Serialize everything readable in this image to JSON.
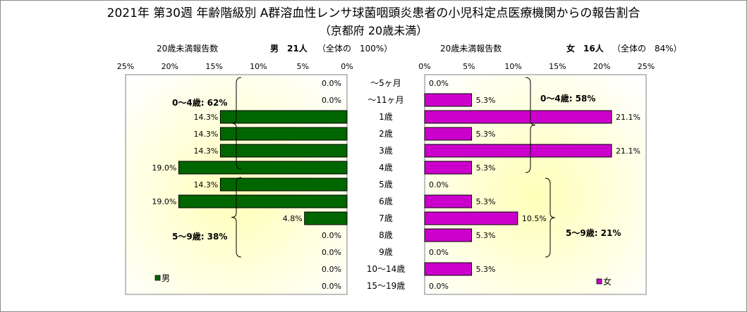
{
  "title": "2021年 第30週 年齢階級別 A群溶血性レンサ球菌咽頭炎患者の小児科定点医療機関からの報告割合",
  "subtitle": "（京都府 20歳未満）",
  "male_header": {
    "report_label": "20歳未満報告数",
    "sex_count": "男　21人",
    "share": "（全体の　100%）"
  },
  "female_header": {
    "report_label": "20歳未満報告数",
    "sex_count": "女　16人",
    "share": "（全体の　84%）"
  },
  "colors": {
    "male": "#006600",
    "female": "#cc00cc",
    "plot_bg_center": "#ffffb8",
    "plot_bg_edge": "#ffffff"
  },
  "chart_data": {
    "type": "bar",
    "categories": [
      "～5ヶ月",
      "～11ヶ月",
      "1歳",
      "2歳",
      "3歳",
      "4歳",
      "5歳",
      "6歳",
      "7歳",
      "8歳",
      "9歳",
      "10～14歳",
      "15～19歳"
    ],
    "xticks_male": [
      "25%",
      "20%",
      "15%",
      "10%",
      "5%",
      "0%"
    ],
    "xticks_female": [
      "0%",
      "5%",
      "10%",
      "15%",
      "20%",
      "25%"
    ],
    "xlim": [
      0,
      25
    ],
    "series": [
      {
        "name": "男",
        "values": [
          0.0,
          0.0,
          14.3,
          14.3,
          14.3,
          19.0,
          14.3,
          19.0,
          4.8,
          0.0,
          0.0,
          0.0,
          0.0
        ],
        "labels": [
          "0.0%",
          "0.0%",
          "14.3%",
          "14.3%",
          "14.3%",
          "19.0%",
          "14.3%",
          "19.0%",
          "4.8%",
          "0.0%",
          "0.0%",
          "0.0%",
          "0.0%"
        ]
      },
      {
        "name": "女",
        "values": [
          0.0,
          5.3,
          21.1,
          5.3,
          21.1,
          5.3,
          0.0,
          5.3,
          10.5,
          5.3,
          0.0,
          5.3,
          0.0
        ],
        "labels": [
          "0.0%",
          "5.3%",
          "21.1%",
          "5.3%",
          "21.1%",
          "5.3%",
          "0.0%",
          "5.3%",
          "10.5%",
          "5.3%",
          "0.0%",
          "5.3%",
          "0.0%"
        ]
      }
    ],
    "annotations": {
      "male_0_4": "0～4歳: 62%",
      "male_5_9": "5～9歳: 38%",
      "female_0_4": "0～4歳: 58%",
      "female_5_9": "5～9歳: 21%"
    },
    "legend": {
      "male": "男",
      "female": "女",
      "placement": "bottom-left of each panel"
    },
    "grid": false
  }
}
